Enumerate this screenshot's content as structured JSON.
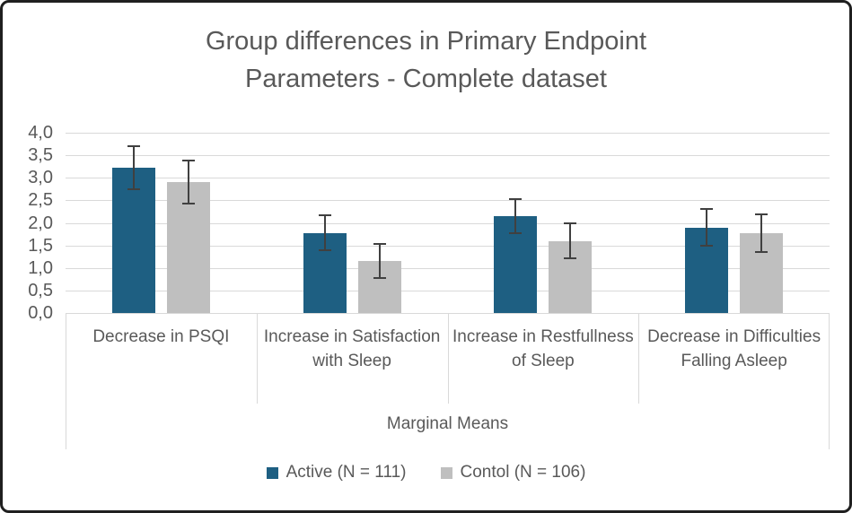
{
  "window": {
    "background": "#FFFFFF",
    "border_color": "#1F1F1F"
  },
  "chart_data": {
    "type": "bar",
    "title": "Group differences in Primary Endpoint Parameters - Complete dataset",
    "title_lines": [
      "Group differences in Primary Endpoint",
      "Parameters - Complete dataset"
    ],
    "categories": [
      "Decrease in PSQI",
      "Increase in Satisfaction with Sleep",
      "Increase in Restfullness of Sleep",
      "Decrease in Difficulties Falling Asleep"
    ],
    "x_axis_group_label": "Marginal Means",
    "series": [
      {
        "name": "Active (N = 111)",
        "color": "#1E5F82",
        "values": [
          3.22,
          1.78,
          2.15,
          1.9
        ],
        "error_bars": [
          0.48,
          0.38,
          0.37,
          0.41
        ]
      },
      {
        "name": "Contol (N = 106)",
        "color": "#BFBFBF",
        "values": [
          2.9,
          1.16,
          1.6,
          1.77
        ],
        "error_bars": [
          0.48,
          0.38,
          0.39,
          0.41
        ]
      }
    ],
    "y_axis": {
      "min": 0,
      "max": 4,
      "step": 0.5,
      "decimal_separator": ",",
      "tick_labels_top_to_bottom": [
        "4,0",
        "3,5",
        "3,0",
        "2,5",
        "2,0",
        "1,5",
        "1,0",
        "0,5",
        "0,0"
      ]
    },
    "grid": true,
    "legend_position": "bottom",
    "colors": {
      "gridline": "#D9D9D9",
      "axis_line": "#D9D9D9",
      "error_bar": "#404040",
      "text": "#595959"
    }
  }
}
